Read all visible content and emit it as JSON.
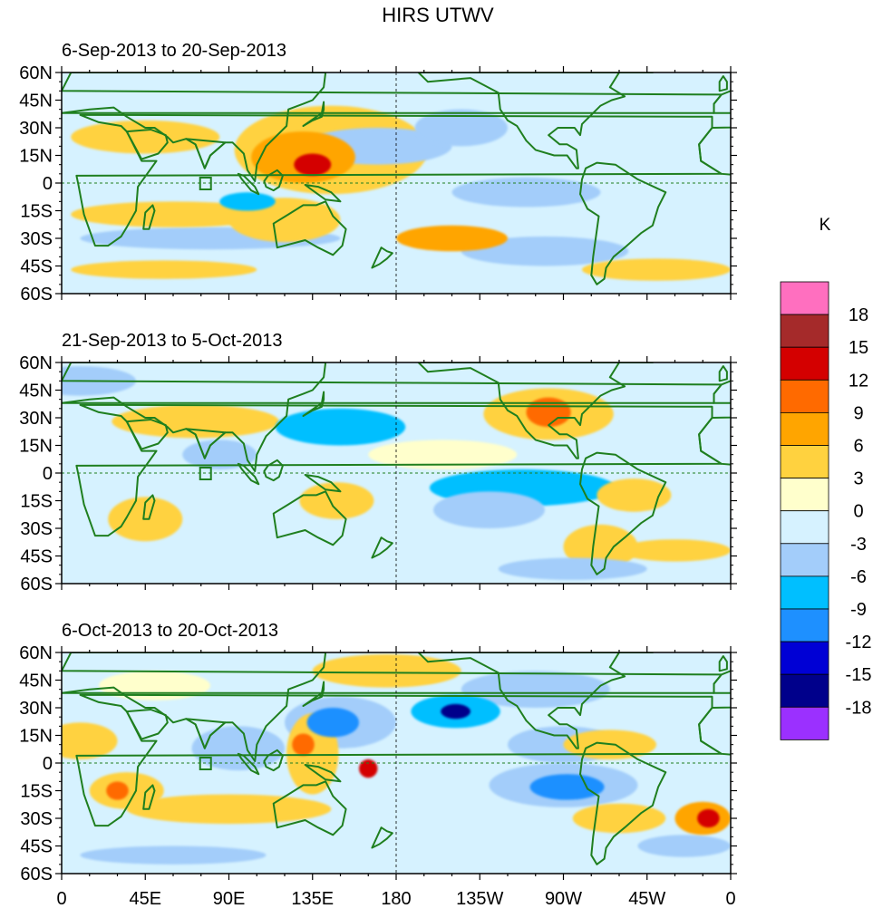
{
  "figure": {
    "title": "HIRS UTWV",
    "units_label": "K",
    "panels": [
      {
        "period": "6-Sep-2013 to 20-Sep-2013",
        "anomalies": [
          {
            "lon": 135,
            "lat": 10,
            "value": 14,
            "rx": 10,
            "ry": 6
          },
          {
            "lon": 130,
            "lat": 14,
            "value": 9,
            "rx": 28,
            "ry": 14
          },
          {
            "lon": 145,
            "lat": 18,
            "value": 6,
            "rx": 52,
            "ry": 24
          },
          {
            "lon": 210,
            "lat": -30,
            "value": 7,
            "rx": 30,
            "ry": 7
          },
          {
            "lon": 60,
            "lat": -17,
            "value": 5,
            "rx": 55,
            "ry": 7
          },
          {
            "lon": 45,
            "lat": 25,
            "value": 5,
            "rx": 40,
            "ry": 9
          },
          {
            "lon": 120,
            "lat": -20,
            "value": 4,
            "rx": 30,
            "ry": 12
          },
          {
            "lon": 55,
            "lat": -47,
            "value": 4,
            "rx": 50,
            "ry": 5
          },
          {
            "lon": 320,
            "lat": -47,
            "value": 4,
            "rx": 40,
            "ry": 6
          },
          {
            "lon": 100,
            "lat": -10,
            "value": -7,
            "rx": 15,
            "ry": 5
          },
          {
            "lon": 170,
            "lat": 20,
            "value": -4,
            "rx": 40,
            "ry": 10
          },
          {
            "lon": 250,
            "lat": -5,
            "value": -4,
            "rx": 40,
            "ry": 8
          },
          {
            "lon": 260,
            "lat": -37,
            "value": -3,
            "rx": 45,
            "ry": 8
          },
          {
            "lon": 80,
            "lat": -30,
            "value": -3,
            "rx": 70,
            "ry": 6
          },
          {
            "lon": 215,
            "lat": 30,
            "value": -3,
            "rx": 25,
            "ry": 10
          }
        ]
      },
      {
        "period": "21-Sep-2013 to 5-Oct-2013",
        "anomalies": [
          {
            "lon": 262,
            "lat": 33,
            "value": 10,
            "rx": 12,
            "ry": 8
          },
          {
            "lon": 262,
            "lat": 32,
            "value": 6,
            "rx": 35,
            "ry": 14
          },
          {
            "lon": 290,
            "lat": -40,
            "value": 6,
            "rx": 20,
            "ry": 12
          },
          {
            "lon": 148,
            "lat": -15,
            "value": 5,
            "rx": 20,
            "ry": 10
          },
          {
            "lon": 72,
            "lat": 28,
            "value": 5,
            "rx": 45,
            "ry": 9
          },
          {
            "lon": 308,
            "lat": -12,
            "value": 5,
            "rx": 20,
            "ry": 9
          },
          {
            "lon": 330,
            "lat": -42,
            "value": 4,
            "rx": 30,
            "ry": 6
          },
          {
            "lon": 45,
            "lat": -25,
            "value": 4,
            "rx": 20,
            "ry": 12
          },
          {
            "lon": 205,
            "lat": 10,
            "value": 3,
            "rx": 40,
            "ry": 8
          },
          {
            "lon": 150,
            "lat": 25,
            "value": -6,
            "rx": 35,
            "ry": 10
          },
          {
            "lon": 248,
            "lat": -8,
            "value": -6,
            "rx": 50,
            "ry": 10
          },
          {
            "lon": 230,
            "lat": -20,
            "value": -3,
            "rx": 30,
            "ry": 10
          },
          {
            "lon": 275,
            "lat": -52,
            "value": -4,
            "rx": 40,
            "ry": 6
          },
          {
            "lon": 10,
            "lat": 50,
            "value": -3,
            "rx": 30,
            "ry": 8
          },
          {
            "lon": 85,
            "lat": 10,
            "value": -3,
            "rx": 20,
            "ry": 8
          }
        ]
      },
      {
        "period": "6-Oct-2013 to 20-Oct-2013",
        "anomalies": [
          {
            "lon": 212,
            "lat": 28,
            "value": -15,
            "rx": 8,
            "ry": 4
          },
          {
            "lon": 212,
            "lat": 28,
            "value": -8,
            "rx": 24,
            "ry": 9
          },
          {
            "lon": 146,
            "lat": 22,
            "value": -9,
            "rx": 14,
            "ry": 8
          },
          {
            "lon": 150,
            "lat": 22,
            "value": -5,
            "rx": 30,
            "ry": 14
          },
          {
            "lon": 272,
            "lat": -13,
            "value": -9,
            "rx": 20,
            "ry": 7
          },
          {
            "lon": 270,
            "lat": -12,
            "value": -5,
            "rx": 40,
            "ry": 12
          },
          {
            "lon": 270,
            "lat": 10,
            "value": -4,
            "rx": 30,
            "ry": 10
          },
          {
            "lon": 95,
            "lat": 8,
            "value": -4,
            "rx": 25,
            "ry": 12
          },
          {
            "lon": 335,
            "lat": -45,
            "value": -5,
            "rx": 25,
            "ry": 6
          },
          {
            "lon": 348,
            "lat": -30,
            "value": 13,
            "rx": 6,
            "ry": 5
          },
          {
            "lon": 345,
            "lat": -30,
            "value": 7,
            "rx": 15,
            "ry": 9
          },
          {
            "lon": 165,
            "lat": -3,
            "value": 13,
            "rx": 5,
            "ry": 5
          },
          {
            "lon": 130,
            "lat": 10,
            "value": 10,
            "rx": 6,
            "ry": 6
          },
          {
            "lon": 135,
            "lat": 5,
            "value": 6,
            "rx": 14,
            "ry": 22
          },
          {
            "lon": 30,
            "lat": -15,
            "value": 11,
            "rx": 6,
            "ry": 5
          },
          {
            "lon": 35,
            "lat": -15,
            "value": 5,
            "rx": 20,
            "ry": 10
          },
          {
            "lon": 90,
            "lat": -25,
            "value": 5,
            "rx": 55,
            "ry": 8
          },
          {
            "lon": 190,
            "lat": 50,
            "value": 6,
            "rx": 20,
            "ry": 7
          },
          {
            "lon": 175,
            "lat": 50,
            "value": 4,
            "rx": 40,
            "ry": 9
          },
          {
            "lon": 295,
            "lat": 10,
            "value": 4,
            "rx": 25,
            "ry": 8
          },
          {
            "lon": 300,
            "lat": -30,
            "value": 4,
            "rx": 25,
            "ry": 8
          },
          {
            "lon": 10,
            "lat": 12,
            "value": 4,
            "rx": 20,
            "ry": 10
          },
          {
            "lon": 50,
            "lat": 42,
            "value": 3,
            "rx": 30,
            "ry": 8
          },
          {
            "lon": 255,
            "lat": 40,
            "value": -3,
            "rx": 40,
            "ry": 10
          },
          {
            "lon": 60,
            "lat": -50,
            "value": -3,
            "rx": 50,
            "ry": 5
          }
        ]
      }
    ],
    "axes": {
      "lat_labels": [
        "60N",
        "45N",
        "30N",
        "15N",
        "0",
        "15S",
        "30S",
        "45S",
        "60S"
      ],
      "lon_labels": [
        "0",
        "45E",
        "90E",
        "135E",
        "180",
        "135W",
        "90W",
        "45W",
        "0"
      ]
    },
    "colorbar": {
      "ticks": [
        "18",
        "15",
        "12",
        "9",
        "6",
        "3",
        "0",
        "-3",
        "-6",
        "-9",
        "-12",
        "-15",
        "-18"
      ],
      "levels": [
        18,
        15,
        12,
        9,
        6,
        3,
        0,
        -3,
        -6,
        -9,
        -12,
        -15,
        -18
      ],
      "colors": [
        "#ff6fbf",
        "#a52a2a",
        "#d40000",
        "#ff6a00",
        "#ffa500",
        "#ffd23f",
        "#ffffcc",
        "#d6f2ff",
        "#a3cdfa",
        "#00bfff",
        "#1e90ff",
        "#0000d5",
        "#00008b",
        "#9b30ff"
      ]
    },
    "land_color": "#1f7f1f"
  }
}
